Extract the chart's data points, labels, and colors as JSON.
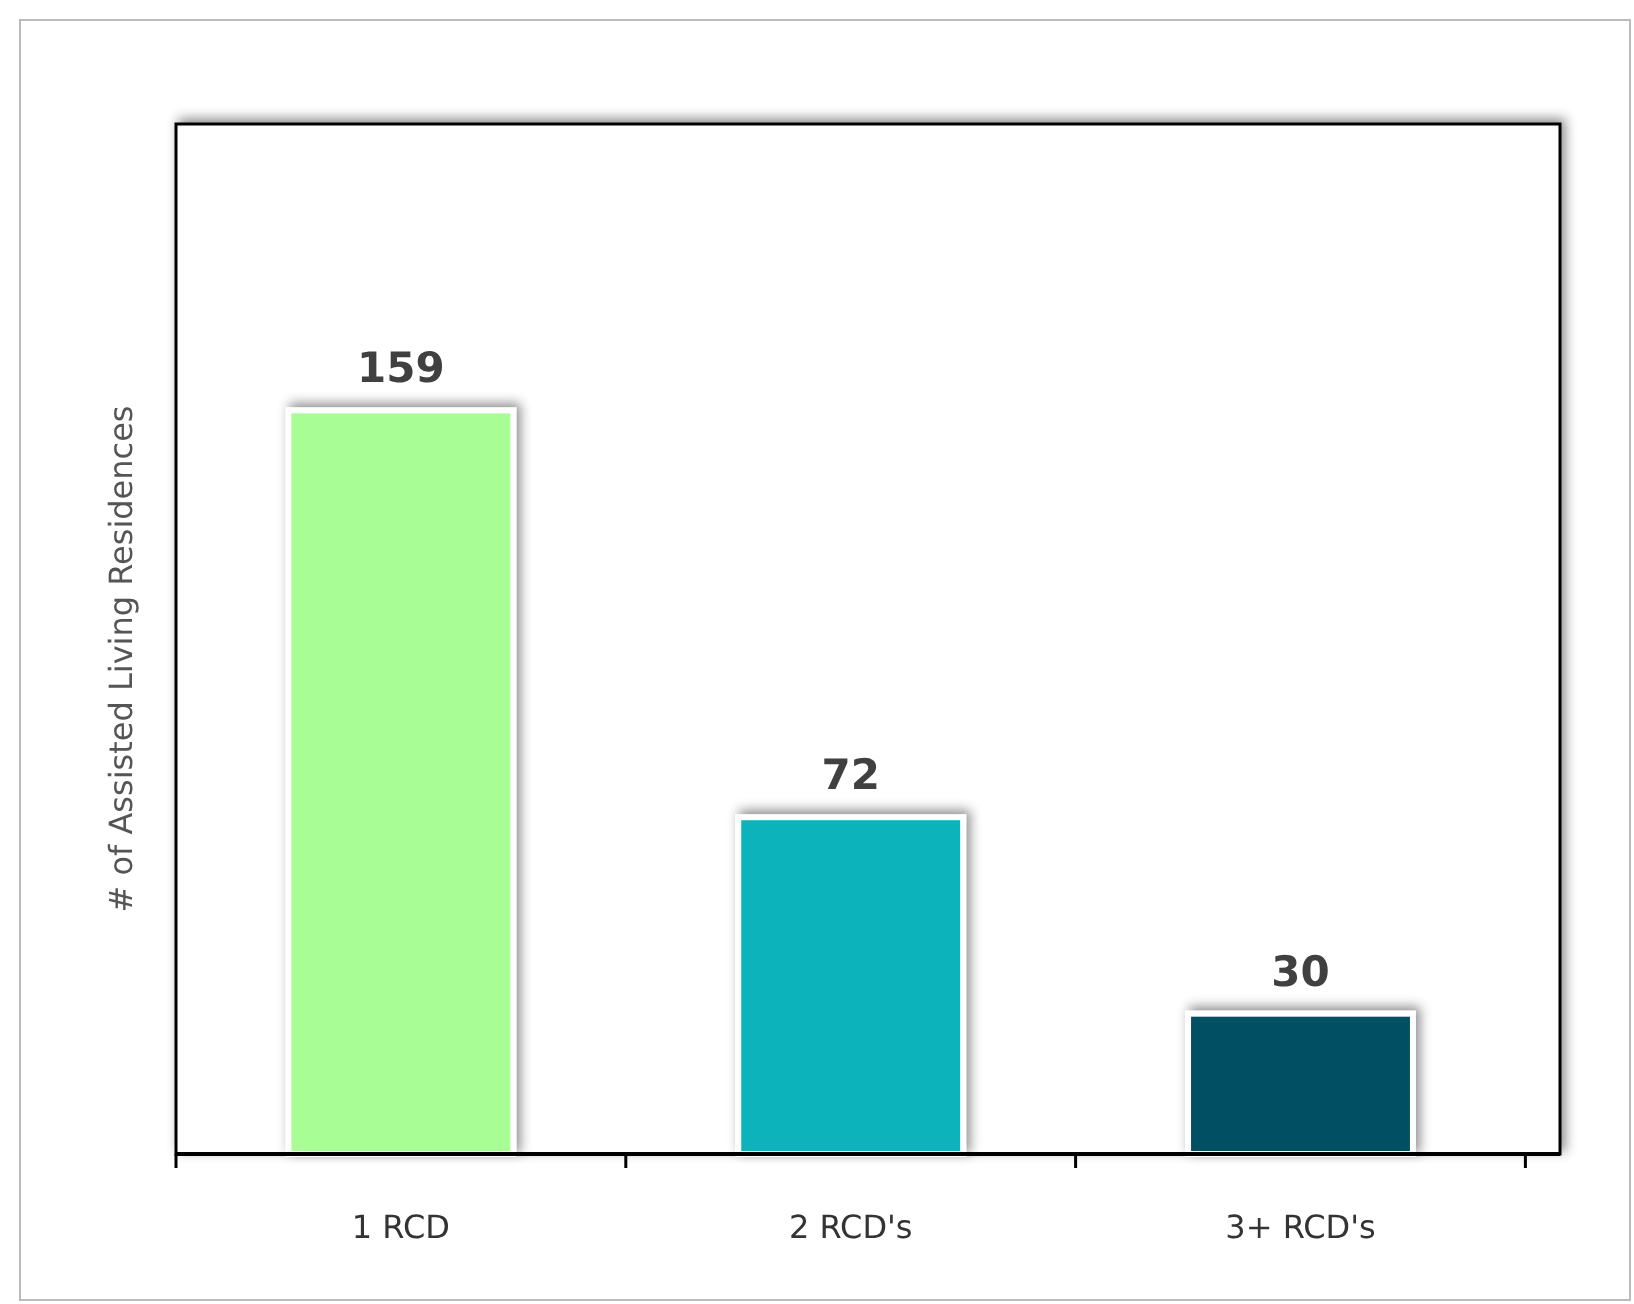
{
  "chart_data": {
    "type": "bar",
    "ylabel": "# of Assisted Living Residences",
    "categories": [
      "1 RCD",
      "2 RCD's",
      "3+ RCD's"
    ],
    "values": [
      159,
      72,
      30
    ],
    "colors": [
      "#a8fd94",
      "#0ab3ba",
      "#045064"
    ],
    "data_labels": true
  }
}
